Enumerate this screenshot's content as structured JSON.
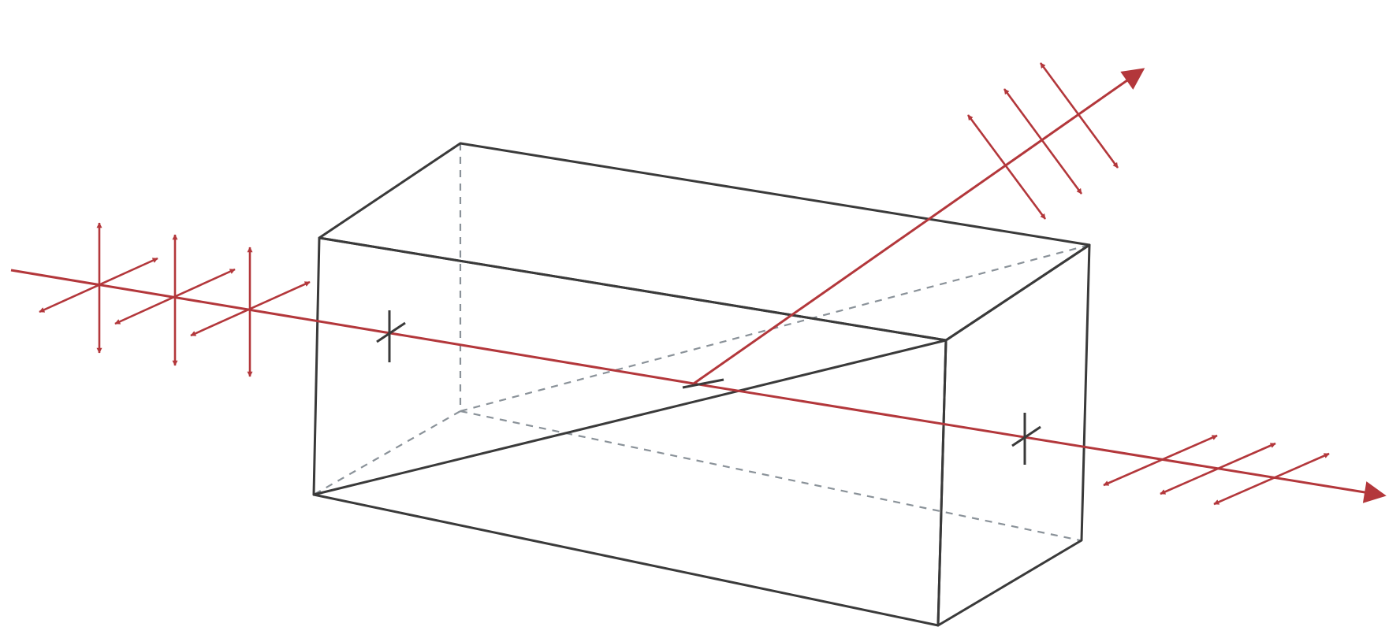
{
  "colors": {
    "background": "#ffffff",
    "edge": "#3a3a3a",
    "hidden_edge": "#8a9299",
    "beam": "#b3373b",
    "tick": "#3a3a3a"
  },
  "icons": {
    "prism": "cube-prism-icon",
    "incident_beam": "beam-arrow-icon",
    "reflected_beam": "beam-arrow-icon",
    "transmitted_beam": "beam-arrow-icon",
    "polarization": "double-headed-arrow-icon"
  }
}
